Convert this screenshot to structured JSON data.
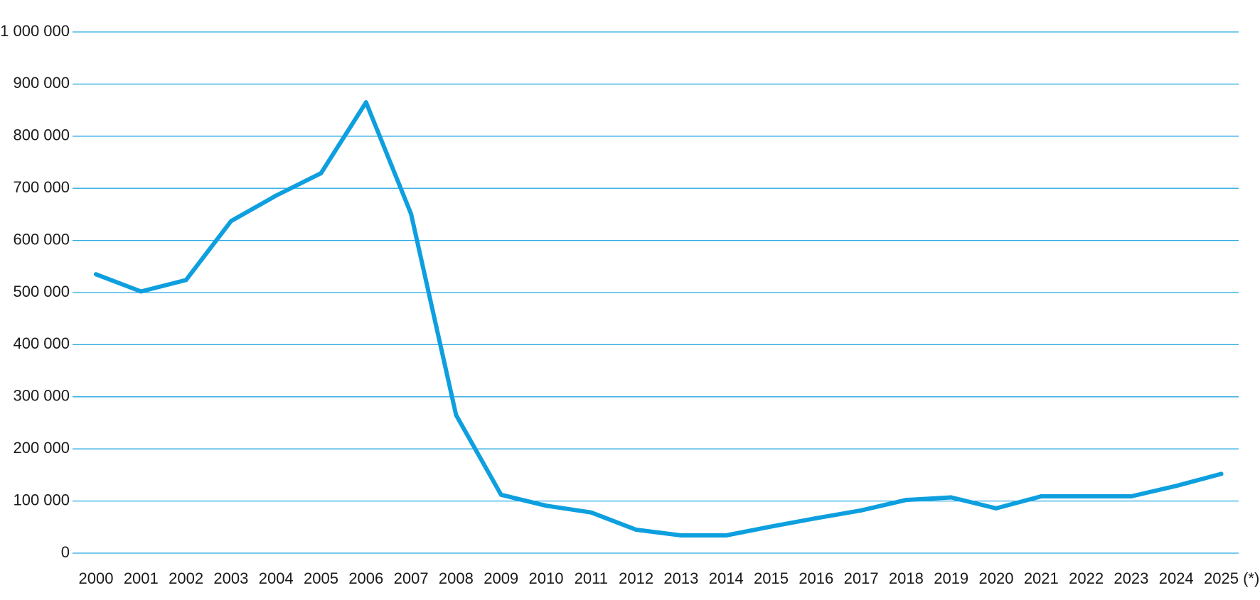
{
  "chart_data": {
    "type": "line",
    "title": "",
    "xlabel": "",
    "ylabel": "",
    "categories": [
      "2000",
      "2001",
      "2002",
      "2003",
      "2004",
      "2005",
      "2006",
      "2007",
      "2008",
      "2009",
      "2010",
      "2011",
      "2012",
      "2013",
      "2014",
      "2015",
      "2016",
      "2017",
      "2018",
      "2019",
      "2020",
      "2021",
      "2022",
      "2023",
      "2024",
      "2025 (*)"
    ],
    "series": [
      {
        "values": [
          535000,
          502000,
          524000,
          637000,
          686000,
          729000,
          865000,
          651000,
          265000,
          112000,
          91000,
          78000,
          45000,
          34000,
          34000,
          51000,
          67000,
          82000,
          102000,
          107000,
          86000,
          109000,
          109000,
          109000,
          129000,
          152000
        ]
      }
    ],
    "ylim": [
      0,
      1000000
    ],
    "yticks": [
      0,
      100000,
      200000,
      300000,
      400000,
      500000,
      600000,
      700000,
      800000,
      900000,
      1000000
    ],
    "ytick_labels": [
      "0",
      "100 000",
      "200 000",
      "300 000",
      "400 000",
      "500 000",
      "600 000",
      "700 000",
      "800 000",
      "900 000",
      "1 000 000"
    ],
    "grid": true,
    "legend": "none",
    "colors": {
      "line": "#0E9FDF",
      "grid": "#29A9E1",
      "text": "#1a1a1a"
    }
  }
}
